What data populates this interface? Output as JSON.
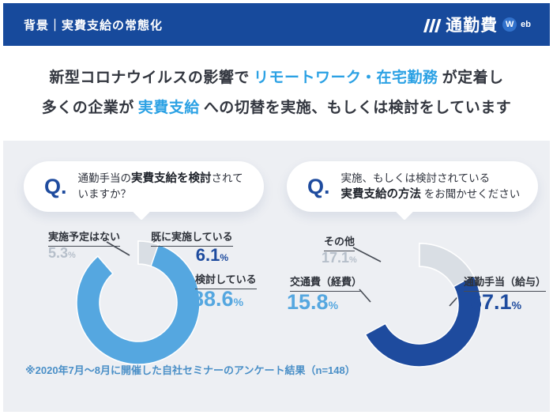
{
  "header": {
    "title": "背景｜実費支給の常態化",
    "logo": {
      "text": "通勤費",
      "badge_w": "W",
      "badge_eb": "eb"
    }
  },
  "headline": {
    "l1a": "新型コロナウイルスの影響で",
    "l1b": "リモートワーク・在宅勤務",
    "l1c": "が定着し",
    "l2a": "多くの企業が",
    "l2b": "実費支給",
    "l2c": "への切替を実施、もしくは検討をしています"
  },
  "questions": [
    {
      "prefix": "Q.",
      "t1": "通勤手当の",
      "bold": "実費支給を検討",
      "t2": "されていますか？"
    },
    {
      "prefix": "Q.",
      "line1": "実施、もしくは検討されている",
      "bold": "実費支給の方法",
      "t2": "をお聞かせください"
    }
  ],
  "chart_data": [
    {
      "type": "donut",
      "title": "通勤手当の実費支給を検討されていますか？",
      "start_angle": "top",
      "direction": "clockwise",
      "unit": "%",
      "slices": [
        {
          "label": "既に実施している",
          "value": 6.1,
          "color": "#1e4b9e"
        },
        {
          "label": "検討している",
          "value": 88.6,
          "color": "#55a7e0"
        },
        {
          "label": "実施予定はない",
          "value": 5.3,
          "color": "#d9dee4"
        }
      ]
    },
    {
      "type": "donut",
      "title": "実施、もしくは検討されている実費支給の方法をお聞かせください",
      "start_angle": "top",
      "direction": "clockwise",
      "unit": "%",
      "slices": [
        {
          "label": "通勤手当（給与）",
          "value": 67.1,
          "color": "#1e4b9e"
        },
        {
          "label": "交通費（経費）",
          "value": 15.8,
          "color": "#55a7e0"
        },
        {
          "label": "その他",
          "value": 17.1,
          "color": "#d9dee4"
        }
      ]
    }
  ],
  "footnote": "※2020年7月～8月に開催した自社セミナーのアンケート結果（n=148）",
  "colors": {
    "header_navy": "#174a9c",
    "slice_navy": "#1e4b9e",
    "slice_blue": "#55a7e0",
    "slice_gray": "#d9dee4",
    "highlight_blue": "#2ba1e4",
    "silver_text": "#b6bfca",
    "footnote_blue": "#4a8fc7",
    "panel_gray": "#edeff3"
  },
  "misc": {
    "percent": "%"
  }
}
